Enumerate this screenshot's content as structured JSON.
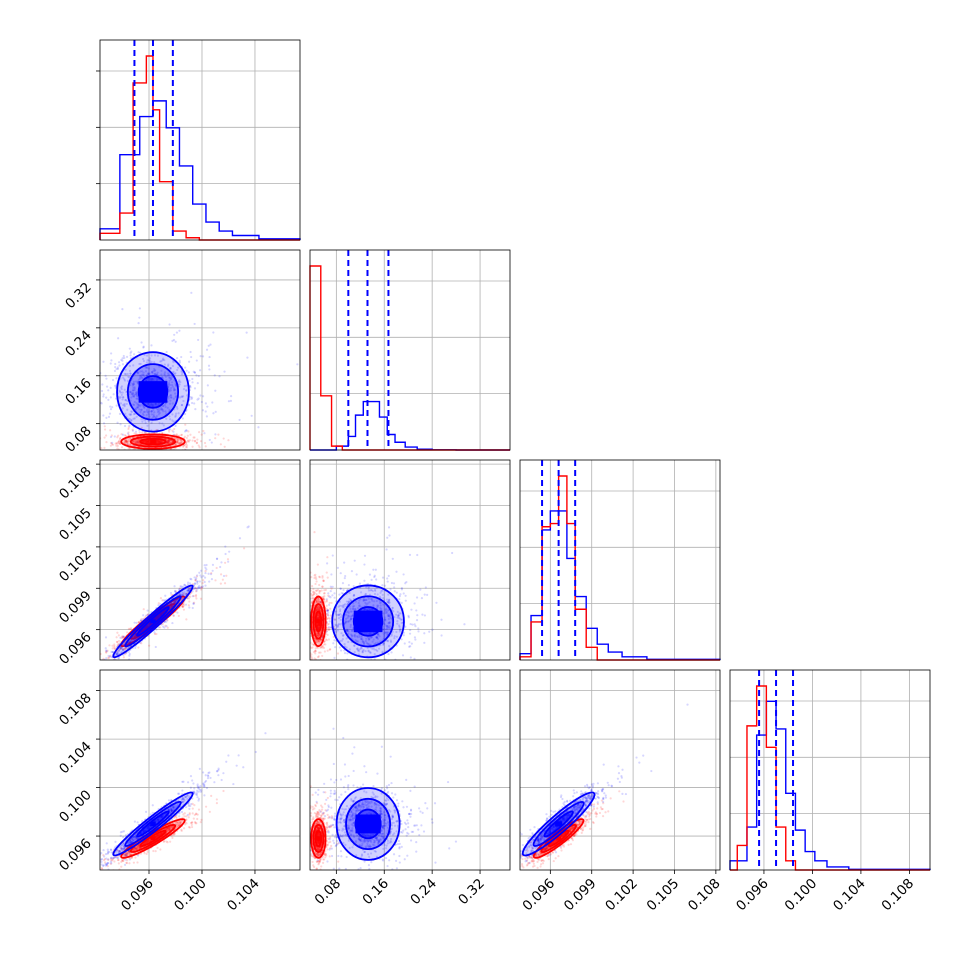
{
  "chart_data": {
    "type": "corner",
    "title": "",
    "parameters": 4,
    "axis_ticks": {
      "p0": [
        0.096,
        0.1,
        0.104
      ],
      "p1": [
        0.08,
        0.16,
        0.24,
        0.32
      ],
      "p2": [
        0.096,
        0.099,
        0.102,
        0.105,
        0.108
      ],
      "p3": [
        0.096,
        0.1,
        0.104,
        0.108
      ]
    },
    "tick_labels": {
      "p0": [
        "0.096",
        "0.100",
        "0.104"
      ],
      "p1": [
        "0.08",
        "0.16",
        "0.24",
        "0.32"
      ],
      "p2": [
        "0.096",
        "0.099",
        "0.102",
        "0.105",
        "0.108"
      ],
      "p3": [
        "0.096",
        "0.100",
        "0.104",
        "0.108"
      ]
    },
    "ranges": {
      "p0": [
        0.0923,
        0.1074
      ],
      "p1": [
        0.036,
        0.37
      ],
      "p2": [
        0.0938,
        0.1083
      ],
      "p3": [
        0.0932,
        0.1097
      ]
    },
    "grid": true,
    "legend": "none",
    "series": [
      {
        "color": "#0000ff",
        "quantiles": {
          "p0": [
            0.0949,
            0.0963,
            0.0978
          ],
          "p1": [
            0.1,
            0.132,
            0.167
          ],
          "p2": [
            0.0954,
            0.0966,
            0.0978
          ],
          "p3": [
            0.0956,
            0.097,
            0.0984
          ]
        },
        "means": {
          "p0": 0.0963,
          "p1": 0.133,
          "p2": 0.0966,
          "p3": 0.097
        },
        "hist_bins": {
          "p0": [
            0.0923,
            0.0938,
            0.0953,
            0.0963,
            0.0973,
            0.0983,
            0.0993,
            0.1003,
            0.1013,
            0.1023,
            0.1043,
            0.1074
          ],
          "p1": [
            0.036,
            0.06,
            0.08,
            0.1,
            0.112,
            0.125,
            0.138,
            0.152,
            0.165,
            0.178,
            0.195,
            0.215,
            0.24,
            0.28,
            0.37
          ],
          "p2": [
            0.0938,
            0.0946,
            0.0954,
            0.096,
            0.0966,
            0.0972,
            0.0978,
            0.0986,
            0.0994,
            0.1002,
            0.1012,
            0.103,
            0.1083
          ],
          "p3": [
            0.0932,
            0.0946,
            0.0954,
            0.0962,
            0.097,
            0.0978,
            0.0986,
            0.0994,
            0.1002,
            0.1012,
            0.103,
            0.1097
          ]
        },
        "hist_counts": {
          "p0": [
            0.05,
            0.38,
            0.55,
            0.62,
            0.5,
            0.33,
            0.16,
            0.08,
            0.04,
            0.02,
            0.005
          ],
          "p1": [
            0,
            0,
            0.02,
            0.07,
            0.18,
            0.25,
            0.25,
            0.17,
            0.08,
            0.04,
            0.015,
            0.004,
            0.001,
            0
          ],
          "p2": [
            0.02,
            0.14,
            0.41,
            0.47,
            0.47,
            0.32,
            0.2,
            0.1,
            0.05,
            0.025,
            0.01,
            0.002
          ],
          "p3": [
            0.03,
            0.14,
            0.44,
            0.55,
            0.46,
            0.25,
            0.13,
            0.06,
            0.03,
            0.01,
            0.002
          ]
        }
      },
      {
        "color": "#ff0000",
        "quantiles": {
          "p0": [
            0.0953,
            0.0963,
            0.0973
          ],
          "p1": [
            0.045,
            0.05,
            0.055
          ],
          "p2": [
            0.0958,
            0.0966,
            0.0974
          ],
          "p3": [
            0.095,
            0.0958,
            0.0966
          ]
        },
        "means": {
          "p0": 0.0963,
          "p1": 0.05,
          "p2": 0.0966,
          "p3": 0.0958
        },
        "hist_bins": {
          "p0": [
            0.0923,
            0.0938,
            0.0948,
            0.0958,
            0.0963,
            0.0968,
            0.0978,
            0.0988,
            0.0998,
            0.1074
          ],
          "p1": [
            0.036,
            0.054,
            0.072,
            0.09,
            0.11,
            0.37
          ],
          "p2": [
            0.0938,
            0.0946,
            0.0954,
            0.096,
            0.0966,
            0.0972,
            0.0978,
            0.0986,
            0.0994,
            0.1083
          ],
          "p3": [
            0.0932,
            0.0938,
            0.0946,
            0.0954,
            0.0962,
            0.097,
            0.0978,
            0.0986,
            0.0994,
            0.1097
          ]
        },
        "hist_counts": {
          "p0": [
            0.03,
            0.12,
            0.7,
            0.82,
            0.58,
            0.26,
            0.04,
            0.01,
            0
          ],
          "p1": [
            0.95,
            0.28,
            0.02,
            0,
            0
          ],
          "p2": [
            0.01,
            0.12,
            0.42,
            0.43,
            0.58,
            0.43,
            0.16,
            0.04,
            0
          ],
          "p3": [
            0,
            0.08,
            0.47,
            0.6,
            0.4,
            0.14,
            0.03,
            0,
            0
          ]
        }
      }
    ],
    "clouds": [
      {
        "color": "#ff0000",
        "mean": [
          0.0963,
          0.05,
          0.0966,
          0.0958
        ],
        "sd": [
          0.0012,
          0.006,
          0.0009,
          0.0008
        ],
        "corr_p0p2": 0.95,
        "corr_p0p3": 0.93,
        "corr_p2p3": 0.92
      },
      {
        "color": "#0000ff",
        "mean": [
          0.0963,
          0.133,
          0.0966,
          0.097
        ],
        "sd": [
          0.0015,
          0.03,
          0.0013,
          0.0013
        ],
        "corr_p0p2": 0.97,
        "corr_p0p3": 0.96,
        "corr_p2p3": 0.93
      }
    ]
  }
}
